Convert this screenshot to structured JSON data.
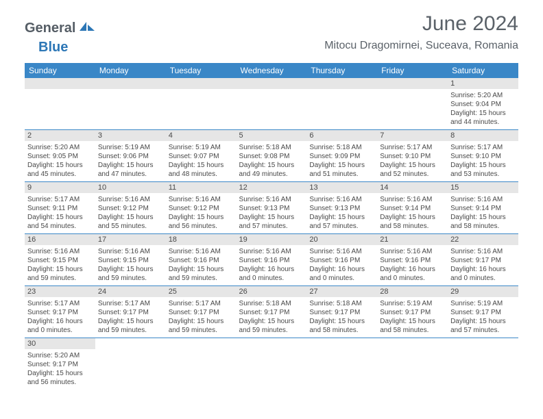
{
  "logo": {
    "general": "General",
    "blue": "Blue"
  },
  "title": "June 2024",
  "location": "Mitocu Dragomirnei, Suceava, Romania",
  "colors": {
    "header_bg": "#3a87c7",
    "header_text": "#ffffff",
    "daynum_bg": "#e6e6e6",
    "text": "#484848",
    "title_text": "#5a6168",
    "border": "#3a87c7"
  },
  "day_headers": [
    "Sunday",
    "Monday",
    "Tuesday",
    "Wednesday",
    "Thursday",
    "Friday",
    "Saturday"
  ],
  "weeks": [
    [
      null,
      null,
      null,
      null,
      null,
      null,
      {
        "n": "1",
        "sr": "Sunrise: 5:20 AM",
        "ss": "Sunset: 9:04 PM",
        "dl": "Daylight: 15 hours and 44 minutes."
      }
    ],
    [
      {
        "n": "2",
        "sr": "Sunrise: 5:20 AM",
        "ss": "Sunset: 9:05 PM",
        "dl": "Daylight: 15 hours and 45 minutes."
      },
      {
        "n": "3",
        "sr": "Sunrise: 5:19 AM",
        "ss": "Sunset: 9:06 PM",
        "dl": "Daylight: 15 hours and 47 minutes."
      },
      {
        "n": "4",
        "sr": "Sunrise: 5:19 AM",
        "ss": "Sunset: 9:07 PM",
        "dl": "Daylight: 15 hours and 48 minutes."
      },
      {
        "n": "5",
        "sr": "Sunrise: 5:18 AM",
        "ss": "Sunset: 9:08 PM",
        "dl": "Daylight: 15 hours and 49 minutes."
      },
      {
        "n": "6",
        "sr": "Sunrise: 5:18 AM",
        "ss": "Sunset: 9:09 PM",
        "dl": "Daylight: 15 hours and 51 minutes."
      },
      {
        "n": "7",
        "sr": "Sunrise: 5:17 AM",
        "ss": "Sunset: 9:10 PM",
        "dl": "Daylight: 15 hours and 52 minutes."
      },
      {
        "n": "8",
        "sr": "Sunrise: 5:17 AM",
        "ss": "Sunset: 9:10 PM",
        "dl": "Daylight: 15 hours and 53 minutes."
      }
    ],
    [
      {
        "n": "9",
        "sr": "Sunrise: 5:17 AM",
        "ss": "Sunset: 9:11 PM",
        "dl": "Daylight: 15 hours and 54 minutes."
      },
      {
        "n": "10",
        "sr": "Sunrise: 5:16 AM",
        "ss": "Sunset: 9:12 PM",
        "dl": "Daylight: 15 hours and 55 minutes."
      },
      {
        "n": "11",
        "sr": "Sunrise: 5:16 AM",
        "ss": "Sunset: 9:12 PM",
        "dl": "Daylight: 15 hours and 56 minutes."
      },
      {
        "n": "12",
        "sr": "Sunrise: 5:16 AM",
        "ss": "Sunset: 9:13 PM",
        "dl": "Daylight: 15 hours and 57 minutes."
      },
      {
        "n": "13",
        "sr": "Sunrise: 5:16 AM",
        "ss": "Sunset: 9:13 PM",
        "dl": "Daylight: 15 hours and 57 minutes."
      },
      {
        "n": "14",
        "sr": "Sunrise: 5:16 AM",
        "ss": "Sunset: 9:14 PM",
        "dl": "Daylight: 15 hours and 58 minutes."
      },
      {
        "n": "15",
        "sr": "Sunrise: 5:16 AM",
        "ss": "Sunset: 9:14 PM",
        "dl": "Daylight: 15 hours and 58 minutes."
      }
    ],
    [
      {
        "n": "16",
        "sr": "Sunrise: 5:16 AM",
        "ss": "Sunset: 9:15 PM",
        "dl": "Daylight: 15 hours and 59 minutes."
      },
      {
        "n": "17",
        "sr": "Sunrise: 5:16 AM",
        "ss": "Sunset: 9:15 PM",
        "dl": "Daylight: 15 hours and 59 minutes."
      },
      {
        "n": "18",
        "sr": "Sunrise: 5:16 AM",
        "ss": "Sunset: 9:16 PM",
        "dl": "Daylight: 15 hours and 59 minutes."
      },
      {
        "n": "19",
        "sr": "Sunrise: 5:16 AM",
        "ss": "Sunset: 9:16 PM",
        "dl": "Daylight: 16 hours and 0 minutes."
      },
      {
        "n": "20",
        "sr": "Sunrise: 5:16 AM",
        "ss": "Sunset: 9:16 PM",
        "dl": "Daylight: 16 hours and 0 minutes."
      },
      {
        "n": "21",
        "sr": "Sunrise: 5:16 AM",
        "ss": "Sunset: 9:16 PM",
        "dl": "Daylight: 16 hours and 0 minutes."
      },
      {
        "n": "22",
        "sr": "Sunrise: 5:16 AM",
        "ss": "Sunset: 9:17 PM",
        "dl": "Daylight: 16 hours and 0 minutes."
      }
    ],
    [
      {
        "n": "23",
        "sr": "Sunrise: 5:17 AM",
        "ss": "Sunset: 9:17 PM",
        "dl": "Daylight: 16 hours and 0 minutes."
      },
      {
        "n": "24",
        "sr": "Sunrise: 5:17 AM",
        "ss": "Sunset: 9:17 PM",
        "dl": "Daylight: 15 hours and 59 minutes."
      },
      {
        "n": "25",
        "sr": "Sunrise: 5:17 AM",
        "ss": "Sunset: 9:17 PM",
        "dl": "Daylight: 15 hours and 59 minutes."
      },
      {
        "n": "26",
        "sr": "Sunrise: 5:18 AM",
        "ss": "Sunset: 9:17 PM",
        "dl": "Daylight: 15 hours and 59 minutes."
      },
      {
        "n": "27",
        "sr": "Sunrise: 5:18 AM",
        "ss": "Sunset: 9:17 PM",
        "dl": "Daylight: 15 hours and 58 minutes."
      },
      {
        "n": "28",
        "sr": "Sunrise: 5:19 AM",
        "ss": "Sunset: 9:17 PM",
        "dl": "Daylight: 15 hours and 58 minutes."
      },
      {
        "n": "29",
        "sr": "Sunrise: 5:19 AM",
        "ss": "Sunset: 9:17 PM",
        "dl": "Daylight: 15 hours and 57 minutes."
      }
    ],
    [
      {
        "n": "30",
        "sr": "Sunrise: 5:20 AM",
        "ss": "Sunset: 9:17 PM",
        "dl": "Daylight: 15 hours and 56 minutes."
      },
      null,
      null,
      null,
      null,
      null,
      null
    ]
  ]
}
